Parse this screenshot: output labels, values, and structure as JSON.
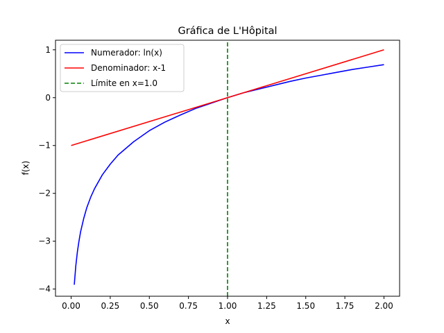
{
  "chart_data": {
    "type": "line",
    "title": "Gráfica de L'Hôpital",
    "xlabel": "x",
    "ylabel": "f(x)",
    "xlim": [
      -0.1,
      2.1
    ],
    "ylim": [
      -4.15,
      1.2
    ],
    "grid": false,
    "legend_position": "top-left",
    "x_ticks": [
      0.0,
      0.25,
      0.5,
      0.75,
      1.0,
      1.25,
      1.5,
      1.75,
      2.0
    ],
    "x_tick_labels": [
      "0.00",
      "0.25",
      "0.50",
      "0.75",
      "1.00",
      "1.25",
      "1.50",
      "1.75",
      "2.00"
    ],
    "y_ticks": [
      -4,
      -3,
      -2,
      -1,
      0,
      1
    ],
    "y_tick_labels": [
      "−4",
      "−3",
      "−2",
      "−1",
      "0",
      "1"
    ],
    "series": [
      {
        "name": "Numerador: ln(x)",
        "color": "#0000ff",
        "style": "solid",
        "x": [
          0.02,
          0.03,
          0.04,
          0.05,
          0.06,
          0.08,
          0.1,
          0.125,
          0.15,
          0.2,
          0.25,
          0.3,
          0.4,
          0.5,
          0.6,
          0.7,
          0.8,
          0.9,
          1.0,
          1.1,
          1.2,
          1.3,
          1.4,
          1.5,
          1.6,
          1.7,
          1.8,
          1.9,
          2.0
        ],
        "y": [
          -3.91,
          -3.51,
          -3.22,
          -3.0,
          -2.81,
          -2.53,
          -2.3,
          -2.08,
          -1.9,
          -1.61,
          -1.39,
          -1.2,
          -0.92,
          -0.69,
          -0.51,
          -0.36,
          -0.22,
          -0.11,
          0.0,
          0.1,
          0.18,
          0.26,
          0.34,
          0.41,
          0.47,
          0.53,
          0.59,
          0.64,
          0.69
        ]
      },
      {
        "name": "Denominador: x-1",
        "color": "#ff0000",
        "style": "solid",
        "x": [
          0.0,
          2.0
        ],
        "y": [
          -1.0,
          1.0
        ]
      },
      {
        "name": "Límite en x=1.0",
        "color": "#008000",
        "style": "dashed",
        "x": [
          1.0,
          1.0
        ],
        "y": [
          -4.15,
          1.2
        ]
      }
    ]
  }
}
